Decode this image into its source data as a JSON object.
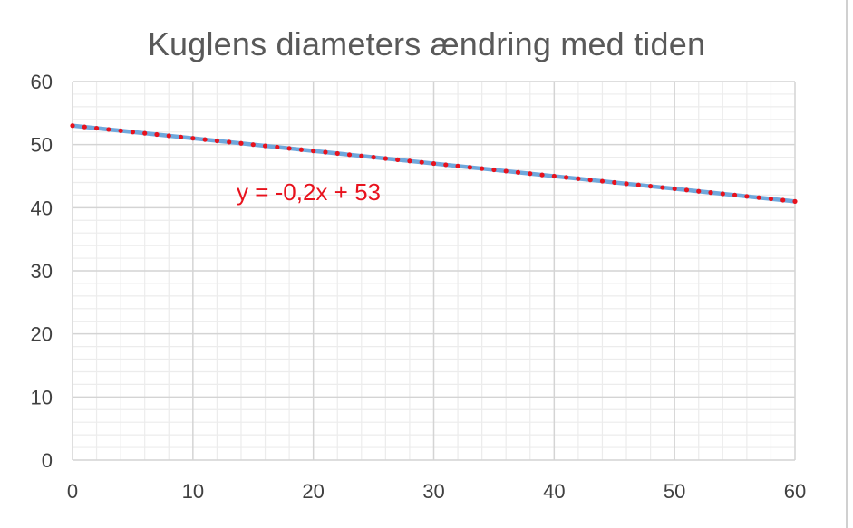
{
  "chart_data": {
    "type": "scatter",
    "title": "Kuglens diameters ændring med tiden",
    "xlabel": "",
    "ylabel": "",
    "xlim": [
      0,
      60
    ],
    "ylim": [
      0,
      60
    ],
    "x_ticks": [
      "0",
      "10",
      "20",
      "30",
      "40",
      "50",
      "60"
    ],
    "y_ticks": [
      "0",
      "10",
      "20",
      "30",
      "40",
      "50",
      "60"
    ],
    "grid": true,
    "legend": "none",
    "series": [
      {
        "x": [
          0,
          1,
          2,
          3,
          4,
          5,
          6,
          7,
          8,
          9,
          10,
          11,
          12,
          13,
          14,
          15,
          16,
          17,
          18,
          19,
          20,
          21,
          22,
          23,
          24,
          25,
          26,
          27,
          28,
          29,
          30,
          31,
          32,
          33,
          34,
          35,
          36,
          37,
          38,
          39,
          40,
          41,
          42,
          43,
          44,
          45,
          46,
          47,
          48,
          49,
          50,
          51,
          52,
          53,
          54,
          55,
          56,
          57,
          58,
          59,
          60
        ],
        "y": [
          53,
          52.8,
          52.6,
          52.4,
          52.2,
          52,
          51.8,
          51.6,
          51.4,
          51.2,
          51,
          50.8,
          50.6,
          50.4,
          50.2,
          50,
          49.8,
          49.6,
          49.4,
          49.2,
          49,
          48.8,
          48.6,
          48.4,
          48.2,
          48,
          47.8,
          47.6,
          47.4,
          47.2,
          47,
          46.8,
          46.6,
          46.4,
          46.2,
          46,
          45.8,
          45.6,
          45.4,
          45.2,
          45,
          44.8,
          44.6,
          44.4,
          44.2,
          44,
          43.8,
          43.6,
          43.4,
          43.2,
          43,
          42.8,
          42.6,
          42.4,
          42.2,
          42,
          41.8,
          41.6,
          41.4,
          41.2,
          41
        ],
        "color": "#e8121d"
      }
    ],
    "trendline": {
      "slope": -0.2,
      "intercept": 53,
      "color": "#6fa8dc",
      "label": "y = -0,2x + 53",
      "label_color": "#e8121d"
    },
    "colors": {
      "major_grid": "#d4d4d4",
      "minor_grid": "#ececec",
      "tick_text": "#404040",
      "title_text": "#595959"
    }
  }
}
